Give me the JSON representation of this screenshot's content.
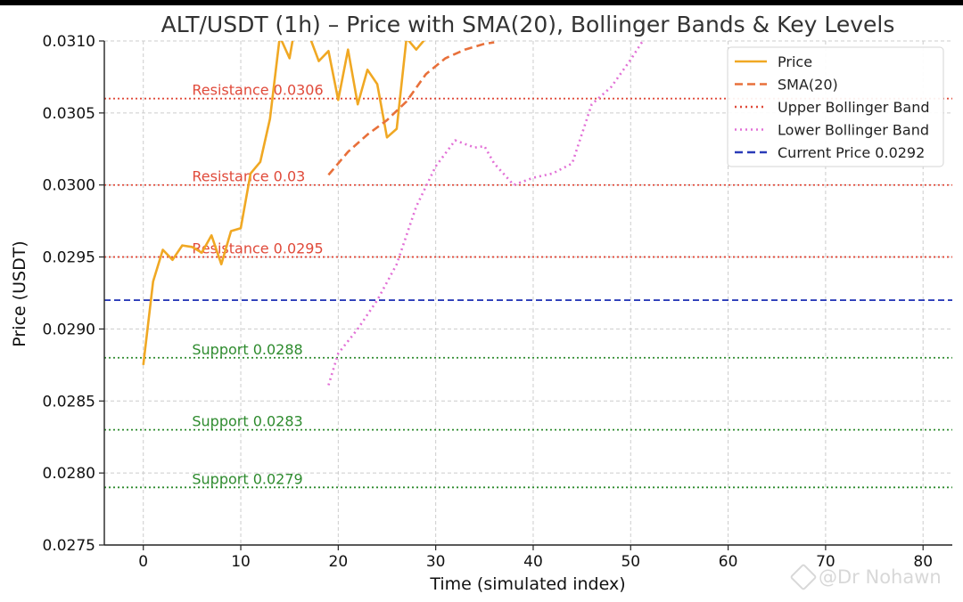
{
  "chart_data": {
    "type": "line",
    "title": "ALT/USDT (1h) – Price with SMA(20), Bollinger Bands & Key Levels",
    "xlabel": "Time (simulated index)",
    "ylabel": "Price (USDT)",
    "xlim": [
      -4,
      83
    ],
    "ylim": [
      0.0275,
      0.031
    ],
    "xticks": [
      0,
      10,
      20,
      30,
      40,
      50,
      60,
      70,
      80
    ],
    "yticks": [
      0.0275,
      0.028,
      0.0285,
      0.029,
      0.0295,
      0.03,
      0.0305,
      0.031
    ],
    "ytick_labels": [
      "0.0275",
      "0.0280",
      "0.0285",
      "0.0290",
      "0.0295",
      "0.0300",
      "0.0305",
      "0.0310"
    ],
    "grid": true,
    "legend_position": "top-right",
    "series": [
      {
        "name": "Price",
        "color": "#f0a823",
        "style": "solid",
        "x": [
          0,
          1,
          2,
          3,
          4,
          5,
          6,
          7,
          8,
          9,
          10,
          11,
          12,
          13,
          14,
          15,
          16,
          17,
          18,
          19,
          20,
          21,
          22,
          23,
          24,
          25,
          26,
          27,
          28,
          29
        ],
        "y": [
          0.02875,
          0.02933,
          0.02955,
          0.02948,
          0.02958,
          0.02957,
          0.02953,
          0.02965,
          0.02945,
          0.02968,
          0.0297,
          0.03008,
          0.03016,
          0.03046,
          0.03103,
          0.03088,
          0.03127,
          0.03104,
          0.03086,
          0.03093,
          0.03059,
          0.03094,
          0.03056,
          0.0308,
          0.0307,
          0.03033,
          0.03039,
          0.03102,
          0.03094,
          0.03102
        ]
      },
      {
        "name": "SMA(20)",
        "color": "#e8703a",
        "style": "dashed",
        "x": [
          19,
          21,
          23,
          25,
          27,
          29,
          31,
          33,
          35,
          36
        ],
        "y": [
          0.03007,
          0.03023,
          0.03035,
          0.03045,
          0.03058,
          0.03077,
          0.03088,
          0.03094,
          0.03098,
          0.03099
        ]
      },
      {
        "name": "Upper Bollinger Band",
        "color": "#e04a3a",
        "style": "dotted",
        "x": [],
        "y": []
      },
      {
        "name": "Lower Bollinger Band",
        "color": "#e270d6",
        "style": "dotted",
        "x": [
          19,
          20,
          22,
          24,
          26,
          28,
          30,
          32,
          34,
          35,
          36,
          38,
          40,
          42,
          44,
          46,
          48,
          50,
          52
        ],
        "y": [
          0.02861,
          0.02883,
          0.029,
          0.0292,
          0.02945,
          0.02985,
          0.03013,
          0.03031,
          0.03026,
          0.03027,
          0.03015,
          0.03,
          0.03005,
          0.03008,
          0.03015,
          0.03056,
          0.03068,
          0.03087,
          0.03108
        ]
      }
    ],
    "levels": [
      {
        "label": "Resistance 0.0306",
        "value": 0.0306,
        "color": "#e04a3a",
        "style": "dotted"
      },
      {
        "label": "Resistance 0.03",
        "value": 0.03,
        "color": "#e04a3a",
        "style": "dotted"
      },
      {
        "label": "Resistance 0.0295",
        "value": 0.0295,
        "color": "#e04a3a",
        "style": "dotted"
      },
      {
        "label": "",
        "value": 0.0292,
        "color": "#2a3bb8",
        "style": "dashed"
      },
      {
        "label": "Support 0.0288",
        "value": 0.0288,
        "color": "#2e8b2e",
        "style": "dotted"
      },
      {
        "label": "Support 0.0283",
        "value": 0.0283,
        "color": "#2e8b2e",
        "style": "dotted"
      },
      {
        "label": "Support 0.0279",
        "value": 0.0279,
        "color": "#2e8b2e",
        "style": "dotted"
      }
    ],
    "level_label_x": 5,
    "legend": [
      {
        "label": "Price",
        "color": "#f0a823",
        "style": "solid"
      },
      {
        "label": "SMA(20)",
        "color": "#e8703a",
        "style": "dashed"
      },
      {
        "label": "Upper Bollinger Band",
        "color": "#e04a3a",
        "style": "dotted"
      },
      {
        "label": "Lower Bollinger Band",
        "color": "#e270d6",
        "style": "dotted"
      },
      {
        "label": "Current Price 0.0292",
        "color": "#2a3bb8",
        "style": "dashed"
      }
    ]
  },
  "watermark": {
    "text": "@Dr Nohawn"
  }
}
